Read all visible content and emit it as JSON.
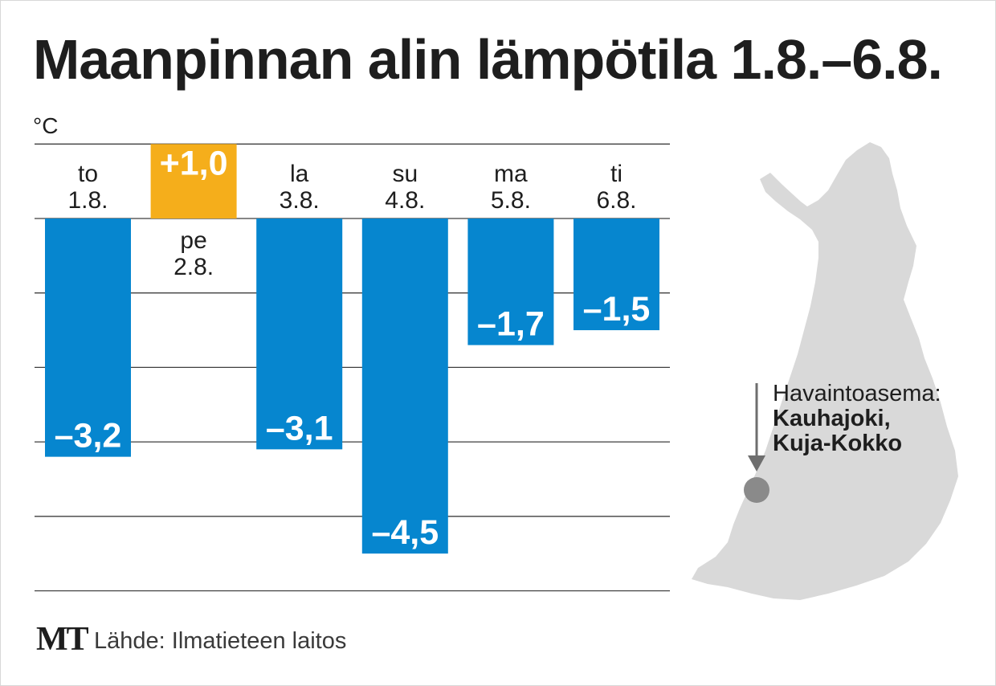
{
  "chart_data": {
    "type": "bar",
    "title": "Maanpinnan alin lämpötila 1.8.–6.8.",
    "ylabel": "°C",
    "ylim": [
      -5.0,
      1.0
    ],
    "gridlines": [
      1.0,
      0.0,
      -1.0,
      -2.0,
      -3.0,
      -4.0,
      -5.0
    ],
    "categories": [
      {
        "day": "to",
        "date": "1.8."
      },
      {
        "day": "pe",
        "date": "2.8."
      },
      {
        "day": "la",
        "date": "3.8."
      },
      {
        "day": "su",
        "date": "4.8."
      },
      {
        "day": "ma",
        "date": "5.8."
      },
      {
        "day": "ti",
        "date": "6.8."
      }
    ],
    "values": [
      -3.2,
      1.0,
      -3.1,
      -4.5,
      -1.7,
      -1.5
    ],
    "value_labels": [
      "–3,2",
      "+1,0",
      "–3,1",
      "–4,5",
      "–1,7",
      "–1,5"
    ],
    "colors": {
      "negative": "#0686cf",
      "positive": "#f5ae1b",
      "grid": "#3f3f3f"
    }
  },
  "map": {
    "region": "Finland",
    "station_label": "Havaintoasema:",
    "station_name_1": "Kauhajoki,",
    "station_name_2": "Kuja-Kokko",
    "colors": {
      "land": "#d9d9d9",
      "marker": "#8a8a8a"
    }
  },
  "footer": {
    "logo": "MT",
    "source": "Lähde: Ilmatieteen laitos"
  }
}
